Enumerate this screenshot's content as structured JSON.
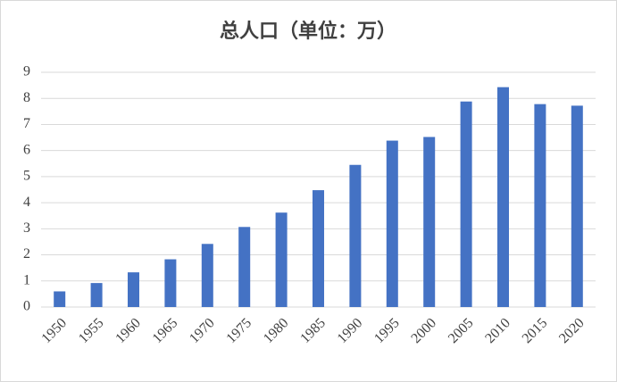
{
  "chart_data": {
    "type": "bar",
    "title": "总人口（单位：万）",
    "categories": [
      "1950",
      "1955",
      "1960",
      "1965",
      "1970",
      "1975",
      "1980",
      "1985",
      "1990",
      "1995",
      "2000",
      "2005",
      "2010",
      "2015",
      "2020"
    ],
    "values": [
      0.6,
      0.92,
      1.33,
      1.83,
      2.42,
      3.07,
      3.62,
      4.48,
      5.45,
      6.38,
      6.52,
      7.88,
      8.43,
      7.78,
      7.72
    ],
    "color": "#4472c4",
    "ylim": [
      0,
      9
    ],
    "yticks": [
      0,
      1,
      2,
      3,
      4,
      5,
      6,
      7,
      8,
      9
    ],
    "grid": true
  }
}
